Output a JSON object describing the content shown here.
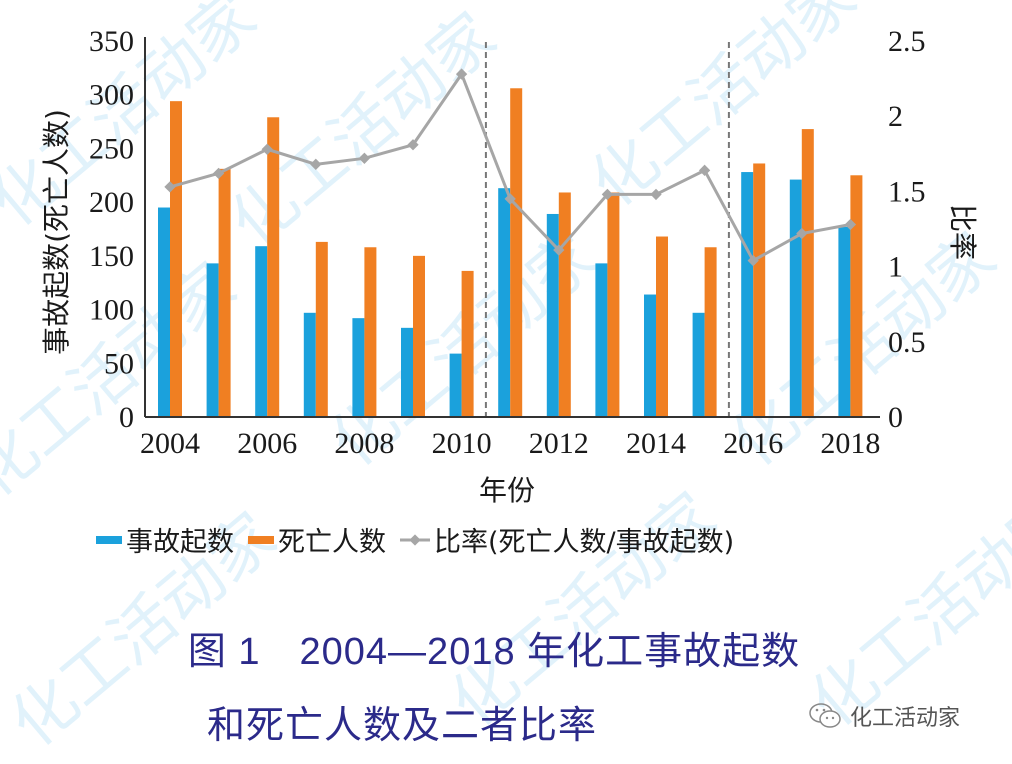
{
  "chart_data": {
    "type": "bar",
    "title": "图 1 2004—2018 年化工事故起数和死亡人数及二者比率",
    "xlabel": "年份",
    "ylabel": "事故起数(死亡人数)",
    "y2label": "比率",
    "categories": [
      "2004",
      "2005",
      "2006",
      "2007",
      "2008",
      "2009",
      "2010",
      "2011",
      "2012",
      "2013",
      "2014",
      "2015",
      "2016",
      "2017",
      "2018"
    ],
    "x_tick_labels": [
      "2004",
      "2006",
      "2008",
      "2010",
      "2012",
      "2014",
      "2016",
      "2018"
    ],
    "ylim": [
      0,
      350
    ],
    "y_ticks": [
      0,
      50,
      100,
      150,
      200,
      250,
      300,
      350
    ],
    "y2lim": [
      0,
      2.5
    ],
    "y2_ticks": [
      "0",
      "0.5",
      "1",
      "1.5",
      "2",
      "2.5"
    ],
    "series": [
      {
        "name": "事故起数",
        "type": "bar",
        "axis": "left",
        "color": "#1ba1dc",
        "values": [
          195,
          143,
          159,
          97,
          92,
          83,
          59,
          213,
          189,
          143,
          114,
          97,
          228,
          221,
          177
        ]
      },
      {
        "name": "死亡人数",
        "type": "bar",
        "axis": "left",
        "color": "#f07f22",
        "values": [
          294,
          231,
          279,
          163,
          158,
          150,
          136,
          306,
          209,
          209,
          168,
          158,
          236,
          268,
          225
        ]
      },
      {
        "name": "比率(死亡人数/事故起数)",
        "type": "line",
        "axis": "right",
        "color": "#a6a6a6",
        "values": [
          1.53,
          1.62,
          1.78,
          1.68,
          1.72,
          1.81,
          2.28,
          1.45,
          1.11,
          1.48,
          1.48,
          1.64,
          1.04,
          1.22,
          1.28
        ]
      }
    ],
    "annotations": [
      {
        "type": "vertical-dashed-line",
        "between": [
          "2010",
          "2011"
        ]
      },
      {
        "type": "vertical-dashed-line",
        "between": [
          "2015",
          "2016"
        ]
      }
    ],
    "grid": false,
    "legend_position": "bottom"
  },
  "legend": {
    "items": [
      {
        "label": "事故起数",
        "color": "#1ba1dc"
      },
      {
        "label": "死亡人数",
        "color": "#f07f22"
      },
      {
        "label": "比率(死亡人数/事故起数)",
        "color": "#a6a6a6"
      }
    ]
  },
  "caption": {
    "line1": "图 1　2004—2018 年化工事故起数",
    "line2": "和死亡人数及二者比率",
    "color": "#2b2a8a"
  },
  "watermark": {
    "text": "化工活动家",
    "source_label": "化工活动家"
  }
}
